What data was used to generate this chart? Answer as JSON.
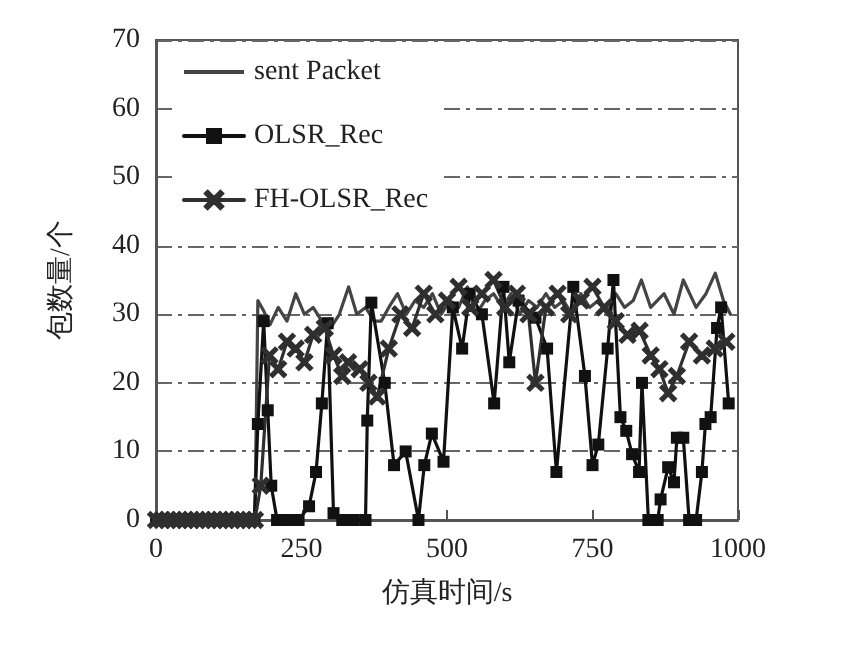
{
  "chart_data": {
    "type": "line",
    "xlabel": "仿真时间/s",
    "ylabel": "包数量/个",
    "xlim": [
      0,
      1000
    ],
    "xticks": [
      0,
      250,
      500,
      750,
      1000
    ],
    "ylim": [
      0,
      70
    ],
    "yticks": [
      0,
      10,
      20,
      30,
      40,
      50,
      60,
      70
    ],
    "grid": "y",
    "legend": "top left",
    "line_style": "solid",
    "series": [
      {
        "name": "sent Packet",
        "color": "#444444",
        "marker": "none",
        "x": [
          0,
          50,
          100,
          150,
          170,
          175,
          185,
          196,
          210,
          225,
          240,
          255,
          270,
          285,
          300,
          315,
          331,
          345,
          360,
          375,
          387,
          400,
          415,
          430,
          445,
          460,
          475,
          490,
          505,
          520,
          535,
          550,
          565,
          580,
          595,
          610,
          625,
          640,
          655,
          670,
          685,
          700,
          715,
          730,
          745,
          760,
          775,
          790,
          805,
          820,
          834,
          850,
          873,
          890,
          906,
          928,
          945,
          961,
          975,
          987
        ],
        "values": [
          0,
          0,
          0,
          0,
          0,
          32,
          30.5,
          28.5,
          31,
          29,
          33,
          30,
          31,
          29,
          28,
          30,
          34,
          30,
          31,
          29,
          29,
          31,
          33,
          30,
          32,
          31,
          33,
          30,
          32,
          31,
          34,
          30,
          32,
          33,
          31,
          33,
          30,
          32,
          31,
          33,
          31,
          32,
          30,
          33,
          31,
          32,
          30,
          33,
          31,
          32,
          35,
          31,
          33,
          30,
          35,
          31,
          33,
          36,
          32,
          30
        ]
      },
      {
        "name": "OLSR_Rec",
        "color": "#111111",
        "marker": "square",
        "x": [
          0,
          10,
          20,
          30,
          40,
          50,
          60,
          70,
          80,
          90,
          100,
          110,
          120,
          130,
          140,
          150,
          160,
          169,
          175,
          185,
          192,
          198,
          208,
          225,
          245,
          263,
          275,
          285,
          295,
          305,
          320,
          340,
          360,
          363,
          370,
          393,
          409,
          429,
          451,
          461,
          474,
          494,
          510,
          526,
          539,
          560,
          581,
          597,
          607,
          623,
          652,
          672,
          688,
          717,
          737,
          750,
          760,
          776,
          786,
          798,
          808,
          818,
          830,
          835,
          846,
          862,
          867,
          880,
          890,
          895,
          906,
          916,
          928,
          938,
          944,
          953,
          964,
          971,
          984
        ],
        "values": [
          0,
          0,
          0,
          0,
          0,
          0,
          0,
          0,
          0,
          0,
          0,
          0,
          0,
          0,
          0,
          0,
          0,
          0,
          14,
          29,
          16,
          5,
          0,
          0,
          0,
          2,
          7,
          17,
          28.7,
          1,
          0,
          0,
          0,
          14.5,
          31.7,
          20,
          8,
          10,
          0,
          8,
          12.6,
          8.5,
          31,
          25,
          33,
          30,
          17,
          34,
          23,
          32,
          29.5,
          25,
          7,
          34,
          21,
          8,
          11,
          25,
          35,
          15,
          13,
          9.6,
          7,
          20,
          0,
          0,
          3,
          7.7,
          5.5,
          12,
          12,
          0,
          0,
          7,
          14,
          15,
          28,
          31,
          17
        ]
      },
      {
        "name": "FH-OLSR_Rec",
        "color": "#2f2f2f",
        "marker": "cross",
        "x": [
          0,
          10,
          20,
          30,
          40,
          50,
          60,
          70,
          80,
          90,
          100,
          110,
          120,
          130,
          140,
          150,
          160,
          170,
          180,
          195,
          210,
          225,
          240,
          255,
          270,
          290,
          305,
          320,
          330,
          350,
          365,
          380,
          400,
          420,
          440,
          460,
          480,
          500,
          520,
          540,
          560,
          580,
          600,
          620,
          640,
          652,
          670,
          690,
          710,
          730,
          750,
          770,
          790,
          810,
          831,
          850,
          865,
          880,
          895,
          916,
          938,
          960,
          980
        ],
        "values": [
          0,
          0,
          0,
          0,
          0,
          0,
          0,
          0,
          0,
          0,
          0,
          0,
          0,
          0,
          0,
          0,
          0,
          0,
          5,
          24,
          22,
          26,
          25,
          23,
          27,
          28,
          24,
          21,
          23,
          22,
          20,
          18,
          25,
          30,
          28,
          33,
          30,
          32,
          34,
          31,
          33,
          35,
          31,
          33,
          30,
          20,
          31,
          33,
          30,
          32,
          34,
          31,
          29,
          27,
          27.6,
          24,
          22,
          18.5,
          21,
          26,
          24,
          25,
          26
        ]
      }
    ]
  }
}
